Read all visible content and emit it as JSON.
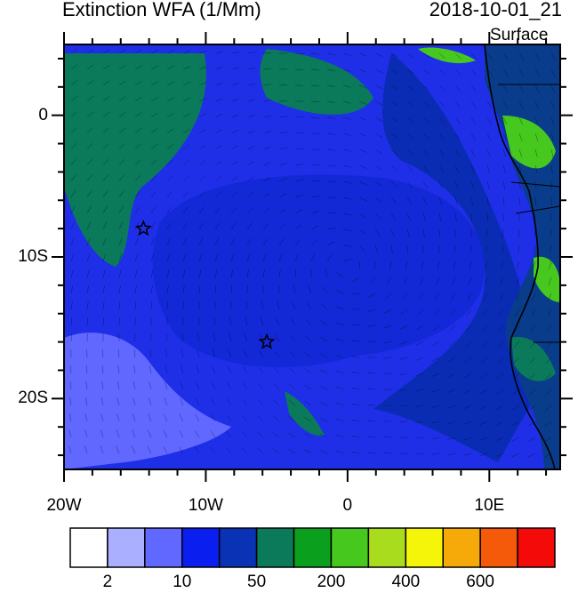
{
  "title": "Extinction WFA (1/Mm)",
  "timestamp": "2018-10-01_21",
  "level": "Surface",
  "map": {
    "lon_range": [
      -20,
      15
    ],
    "lat_range": [
      -25,
      5
    ],
    "lat_ticks": [
      {
        "label": "0",
        "value": 0
      },
      {
        "label": "10S",
        "value": -10
      },
      {
        "label": "20S",
        "value": -20
      }
    ],
    "lon_ticks": [
      {
        "label": "20W",
        "value": -20
      },
      {
        "label": "10W",
        "value": -10
      },
      {
        "label": "0",
        "value": 0
      },
      {
        "label": "10E",
        "value": 10
      }
    ],
    "ocean_color": "#1f2fe8",
    "markers": [
      {
        "name": "star",
        "lon": -14.4,
        "lat": -8.0
      },
      {
        "name": "star",
        "lon": -5.7,
        "lat": -16.0
      }
    ]
  },
  "colorbar": {
    "colors": [
      "#ffffff",
      "#aab0ff",
      "#6068ff",
      "#0a1ef0",
      "#0a32b4",
      "#0a7a5a",
      "#0aa01e",
      "#46c81e",
      "#aadc1e",
      "#f5f50a",
      "#f5aa0a",
      "#f55a0a",
      "#f50a0a"
    ],
    "labels": [
      {
        "text": "2",
        "after_bin": 1
      },
      {
        "text": "10",
        "after_bin": 3
      },
      {
        "text": "50",
        "after_bin": 5
      },
      {
        "text": "200",
        "after_bin": 7
      },
      {
        "text": "400",
        "after_bin": 9
      },
      {
        "text": "600",
        "after_bin": 11
      }
    ]
  }
}
